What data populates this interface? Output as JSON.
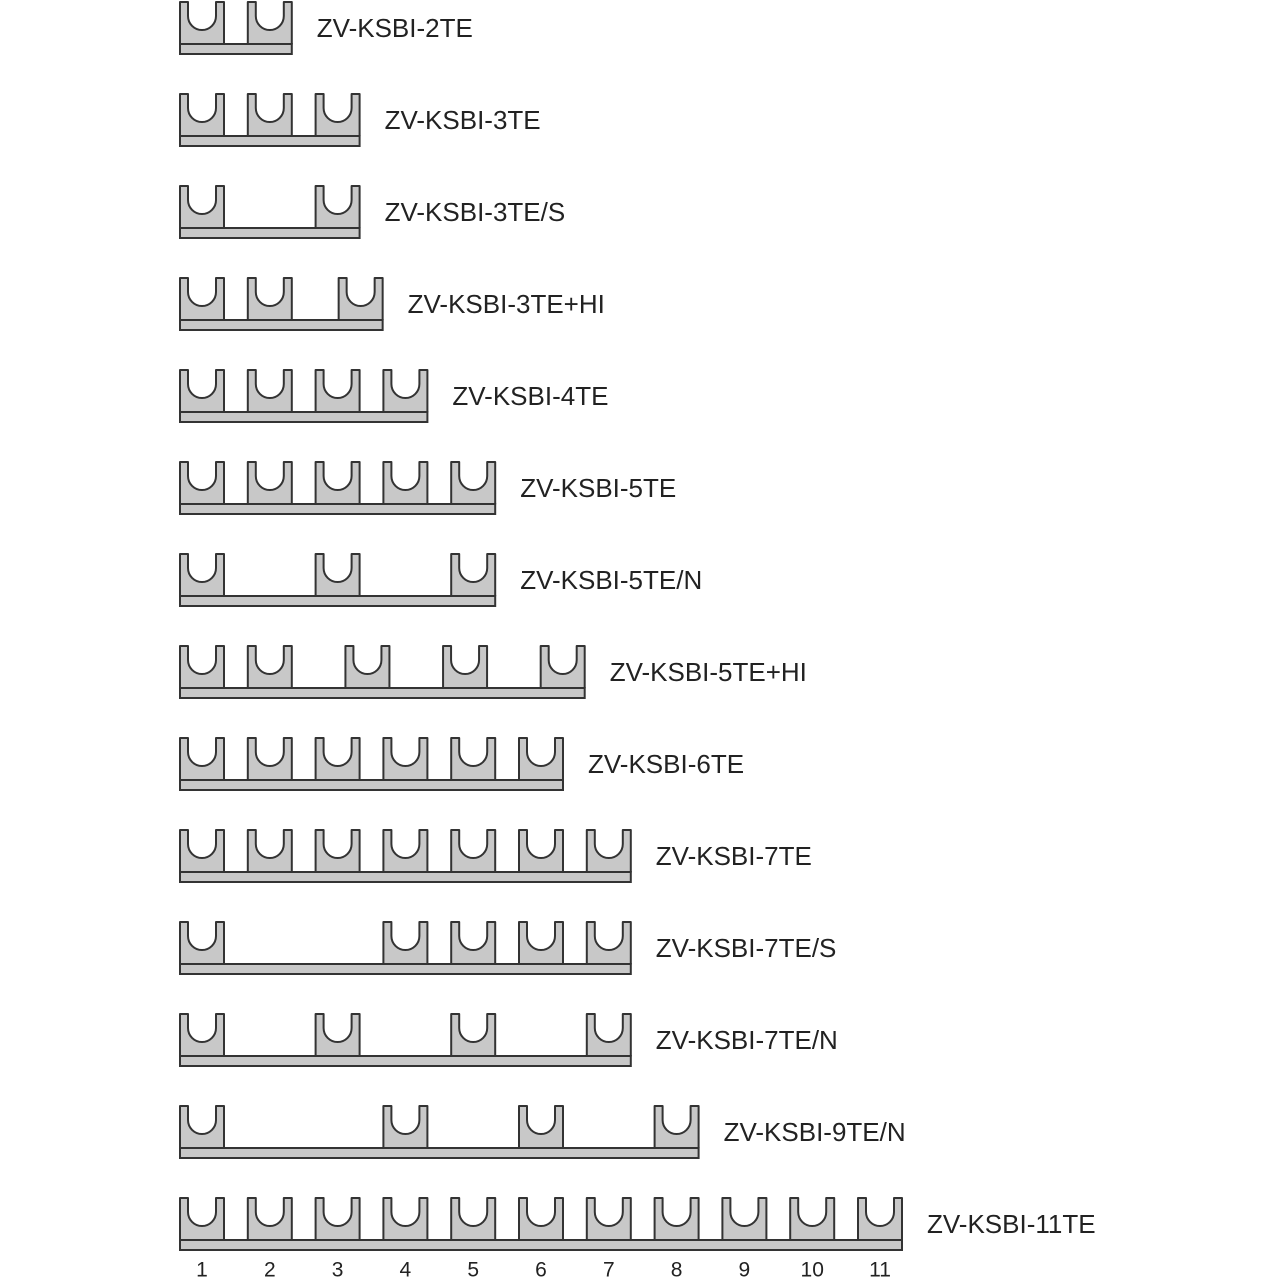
{
  "items": [
    {
      "label": "ZV-KSBI-2TE"
    },
    {
      "label": "ZV-KSBI-3TE"
    },
    {
      "label": "ZV-KSBI-3TE/S"
    },
    {
      "label": "ZV-KSBI-3TE+HI"
    },
    {
      "label": "ZV-KSBI-4TE"
    },
    {
      "label": "ZV-KSBI-5TE"
    },
    {
      "label": "ZV-KSBI-5TE/N"
    },
    {
      "label": "ZV-KSBI-5TE+HI"
    },
    {
      "label": "ZV-KSBI-6TE"
    },
    {
      "label": "ZV-KSBI-7TE"
    },
    {
      "label": "ZV-KSBI-7TE/S"
    },
    {
      "label": "ZV-KSBI-7TE/N"
    },
    {
      "label": "ZV-KSBI-9TE/N"
    },
    {
      "label": "ZV-KSBI-11TE"
    }
  ],
  "scale": [
    1,
    2,
    3,
    4,
    5,
    6,
    7,
    8,
    9,
    10,
    11
  ]
}
